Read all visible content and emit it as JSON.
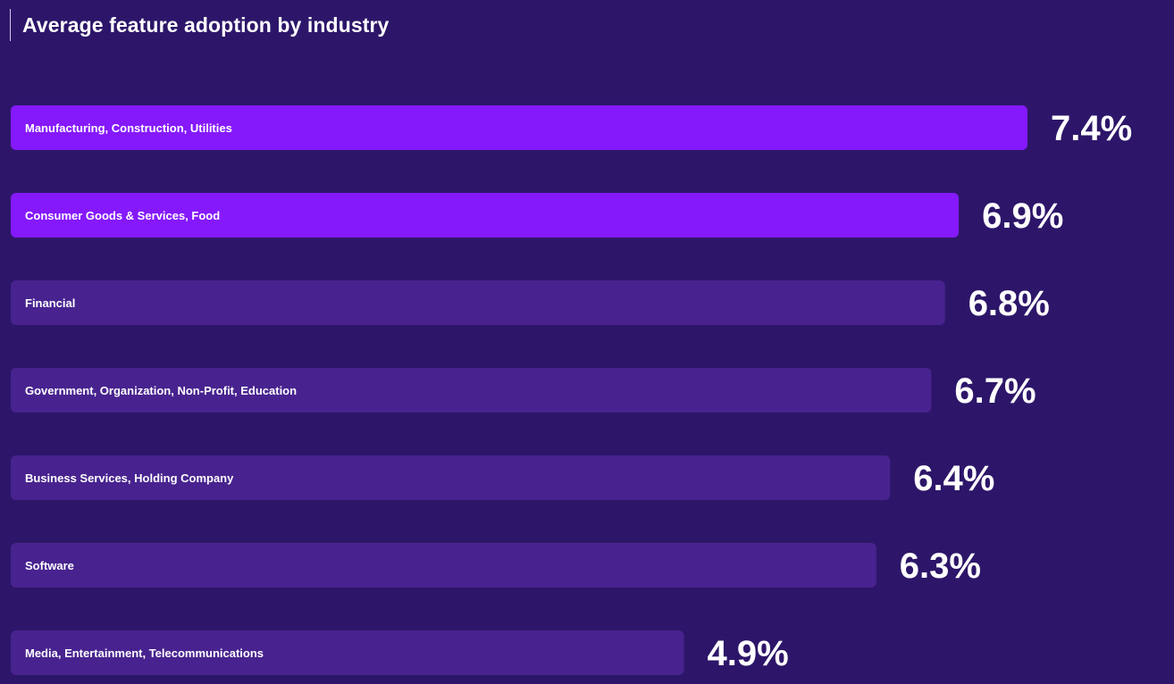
{
  "colors": {
    "background": "#2d1669",
    "bar_highlight": "#8519fc",
    "bar_default": "#48238f",
    "text": "#ffffff"
  },
  "chart_data": {
    "type": "bar",
    "orientation": "horizontal",
    "title": "Average feature adoption by industry",
    "categories": [
      "Manufacturing, Construction, Utilities",
      "Consumer Goods & Services, Food",
      "Financial",
      "Government, Organization, Non-Profit, Education",
      "Business Services, Holding Company",
      "Software",
      "Media, Entertainment, Telecommunications"
    ],
    "values": [
      7.4,
      6.9,
      6.8,
      6.7,
      6.4,
      6.3,
      4.9
    ],
    "value_labels": [
      "7.4%",
      "6.9%",
      "6.8%",
      "6.7%",
      "6.4%",
      "6.3%",
      "4.9%"
    ],
    "highlighted": [
      true,
      true,
      false,
      false,
      false,
      false,
      false
    ],
    "xlim": [
      0,
      7.4
    ],
    "grid": false
  }
}
